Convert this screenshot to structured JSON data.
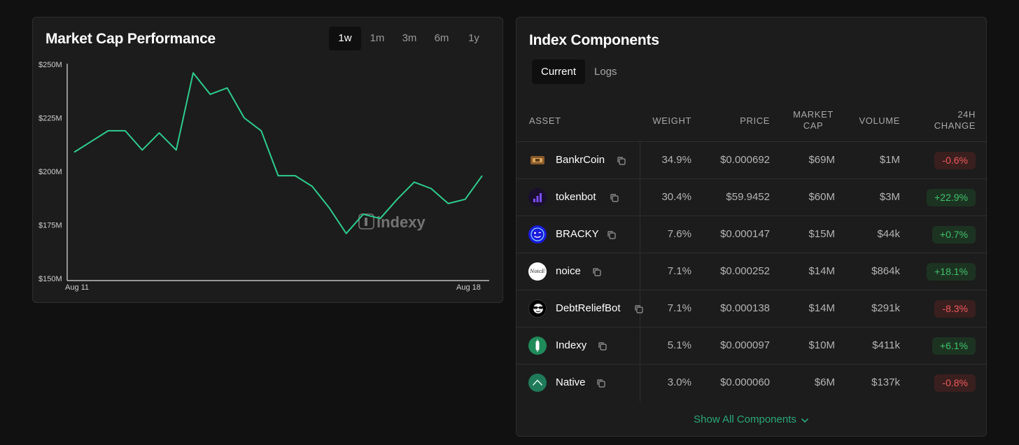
{
  "chart_panel": {
    "title": "Market Cap Performance",
    "ranges": [
      "1w",
      "1m",
      "3m",
      "6m",
      "1y"
    ],
    "active_range": "1w",
    "watermark": "indexy"
  },
  "chart_data": {
    "type": "line",
    "title": "Market Cap Performance",
    "xlabel": "",
    "ylabel": "",
    "x_tick_labels": [
      "Aug 11",
      "Aug 18"
    ],
    "y_tick_labels": [
      "$150M",
      "$175M",
      "$200M",
      "$225M",
      "$250M"
    ],
    "y_ticks": [
      150,
      175,
      200,
      225,
      250
    ],
    "ylim": [
      150,
      250
    ],
    "y_units": "$M",
    "x_range": [
      "Aug 11",
      "Aug 18"
    ],
    "grid": false,
    "line_color": "#2ecc8f",
    "series": [
      {
        "values": [
          209,
          214,
          219,
          219,
          210,
          218,
          210,
          246,
          236,
          239,
          225,
          219,
          198,
          198,
          193,
          183,
          171,
          180,
          178,
          187,
          195,
          192,
          185,
          187,
          198
        ]
      }
    ]
  },
  "index_panel": {
    "title": "Index Components",
    "tabs": [
      "Current",
      "Logs"
    ],
    "active_tab": "Current",
    "columns": {
      "asset": "ASSET",
      "weight": "WEIGHT",
      "price": "PRICE",
      "market_cap": "MARKET CAP",
      "volume": "VOLUME",
      "change": "24H CHANGE"
    },
    "rows": [
      {
        "name": "BankrCoin",
        "weight": "34.9%",
        "price": "$0.000692",
        "market_cap": "$69M",
        "volume": "$1M",
        "change": "-0.6%",
        "direction": "neg",
        "icon": "bankrcoin-icon"
      },
      {
        "name": "tokenbot",
        "weight": "30.4%",
        "price": "$59.9452",
        "market_cap": "$60M",
        "volume": "$3M",
        "change": "+22.9%",
        "direction": "pos",
        "icon": "tokenbot-icon"
      },
      {
        "name": "BRACKY",
        "weight": "7.6%",
        "price": "$0.000147",
        "market_cap": "$15M",
        "volume": "$44k",
        "change": "+0.7%",
        "direction": "pos",
        "icon": "bracky-icon"
      },
      {
        "name": "noice",
        "weight": "7.1%",
        "price": "$0.000252",
        "market_cap": "$14M",
        "volume": "$864k",
        "change": "+18.1%",
        "direction": "pos",
        "icon": "noice-icon"
      },
      {
        "name": "DebtReliefBot",
        "weight": "7.1%",
        "price": "$0.000138",
        "market_cap": "$14M",
        "volume": "$291k",
        "change": "-8.3%",
        "direction": "neg",
        "icon": "debtreliefbot-icon"
      },
      {
        "name": "Indexy",
        "weight": "5.1%",
        "price": "$0.000097",
        "market_cap": "$10M",
        "volume": "$411k",
        "change": "+6.1%",
        "direction": "pos",
        "icon": "indexy-icon"
      },
      {
        "name": "Native",
        "weight": "3.0%",
        "price": "$0.000060",
        "market_cap": "$6M",
        "volume": "$137k",
        "change": "-0.8%",
        "direction": "neg",
        "icon": "native-icon"
      }
    ],
    "show_all_label": "Show All Components",
    "noice_icon_text": "NoicE",
    "colors": {
      "accent": "#2aa87a",
      "negative": "#ef5a5a",
      "positive": "#3ec26a"
    }
  }
}
